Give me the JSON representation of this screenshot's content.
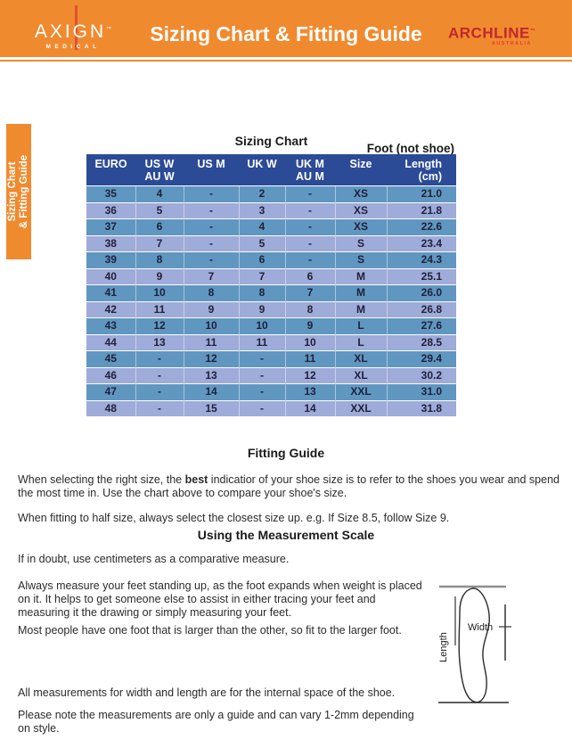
{
  "header": {
    "title": "Sizing Chart & Fitting Guide",
    "brand_left": {
      "name": "AXIGN",
      "tm": "™",
      "sub": "MEDICAL"
    },
    "brand_right": {
      "name": "ARCHLINE",
      "tm": "™",
      "sub": "AUSTRALIA"
    }
  },
  "side_tab": {
    "line1": "Sizing Chart",
    "line2": "& Fitting Guide"
  },
  "sizing_chart": {
    "title": "Sizing Chart",
    "foot_note": "Foot (not shoe)"
  },
  "chart_data": {
    "type": "table",
    "columns": [
      {
        "line1": "EURO",
        "line2": ""
      },
      {
        "line1": "US W",
        "line2": "AU W"
      },
      {
        "line1": "US M",
        "line2": ""
      },
      {
        "line1": "UK W",
        "line2": ""
      },
      {
        "line1": "UK M",
        "line2": "AU M"
      },
      {
        "line1": "Size",
        "line2": ""
      },
      {
        "line1": "Length",
        "line2": "(cm)"
      }
    ],
    "rows": [
      [
        "35",
        "4",
        "-",
        "2",
        "-",
        "XS",
        "21.0"
      ],
      [
        "36",
        "5",
        "-",
        "3",
        "-",
        "XS",
        "21.8"
      ],
      [
        "37",
        "6",
        "-",
        "4",
        "-",
        "XS",
        "22.6"
      ],
      [
        "38",
        "7",
        "-",
        "5",
        "-",
        "S",
        "23.4"
      ],
      [
        "39",
        "8",
        "-",
        "6",
        "-",
        "S",
        "24.3"
      ],
      [
        "40",
        "9",
        "7",
        "7",
        "6",
        "M",
        "25.1"
      ],
      [
        "41",
        "10",
        "8",
        "8",
        "7",
        "M",
        "26.0"
      ],
      [
        "42",
        "11",
        "9",
        "9",
        "8",
        "M",
        "26.8"
      ],
      [
        "43",
        "12",
        "10",
        "10",
        "9",
        "L",
        "27.6"
      ],
      [
        "44",
        "13",
        "11",
        "11",
        "10",
        "L",
        "28.5"
      ],
      [
        "45",
        "-",
        "12",
        "-",
        "11",
        "XL",
        "29.4"
      ],
      [
        "46",
        "-",
        "13",
        "-",
        "12",
        "XL",
        "30.2"
      ],
      [
        "47",
        "-",
        "14",
        "-",
        "13",
        "XXL",
        "31.0"
      ],
      [
        "48",
        "-",
        "15",
        "-",
        "14",
        "XXL",
        "31.8"
      ]
    ]
  },
  "fitting_guide": {
    "heading": "Fitting Guide",
    "p1_before": "When selecting the right size, the ",
    "p1_bold": "best",
    "p1_after": " indicatior of your shoe size is to refer to the shoes you wear and spend the most time in. Use the chart above to compare your shoe's size.",
    "p2": "When fitting to half size, always select the closest size up. e.g. If Size 8.5, follow Size 9."
  },
  "measurement_scale": {
    "heading": "Using the Measurement Scale",
    "p1": "If in doubt, use centimeters as a comparative measure.",
    "p2": "Always measure your feet standing up, as the foot expands when weight is placed on it. It helps to get someone else to assist in either tracing your feet and measuring it the drawing or simply measuring your feet.",
    "p3": "Most people have one foot that is larger than the other, so fit to the larger foot.",
    "p4": "All measurements for width and length are for the internal space of the shoe.",
    "p5": "Please note the measurements are only a guide and can vary 1-2mm depending on style."
  },
  "diagram": {
    "width_label": "Width",
    "length_label": "Length"
  },
  "colors": {
    "orange": "#F08A2F",
    "table_header_navy": "#2C4B97",
    "row_steel_blue": "#6097C1",
    "row_periwinkle": "#9FABD9",
    "archline_red": "#C1272D",
    "australia_red": "#E63C2F",
    "axign_line_red": "#E0512F"
  }
}
